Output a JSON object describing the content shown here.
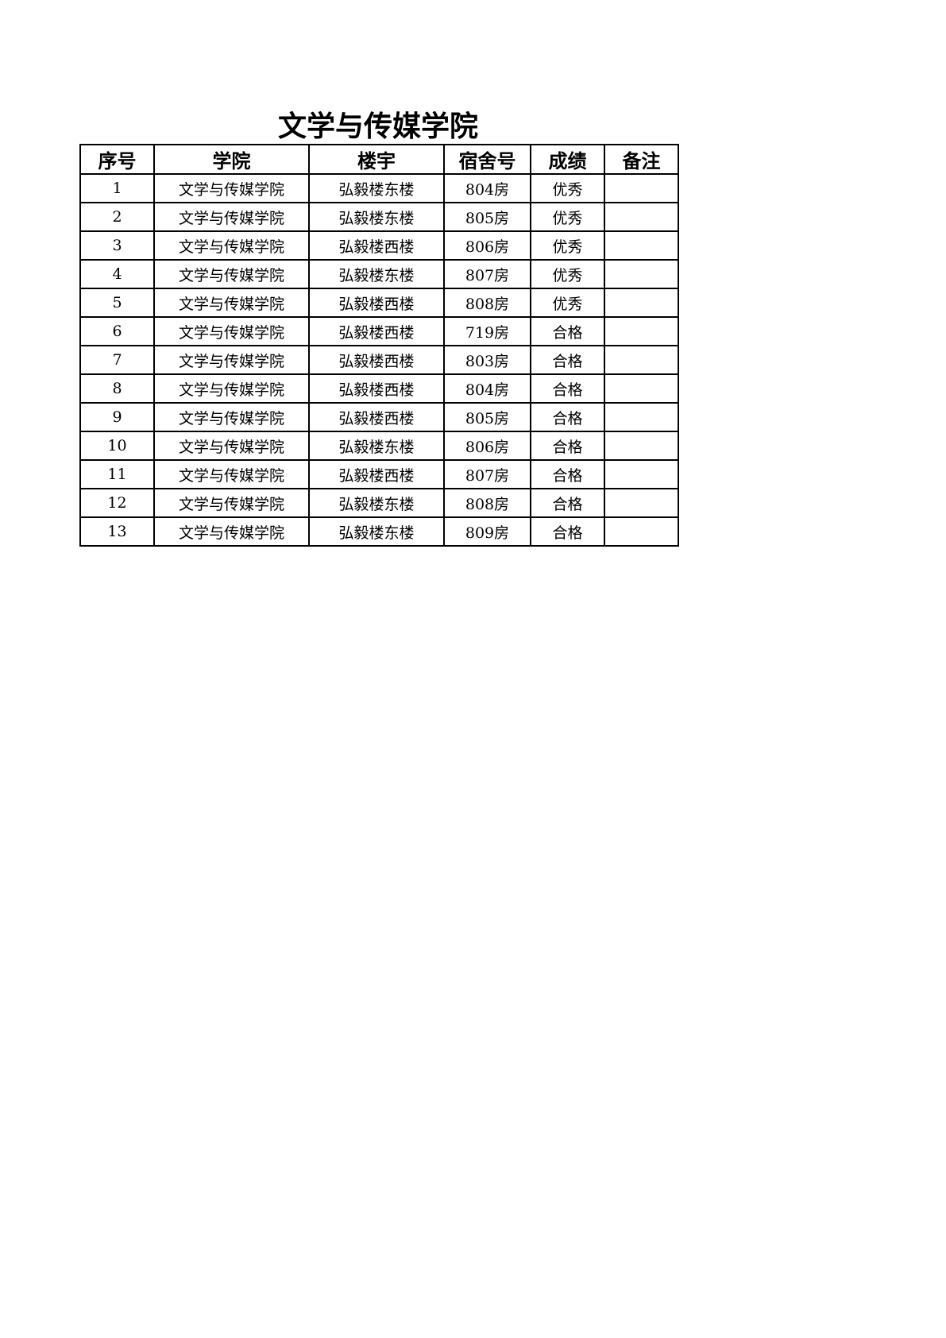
{
  "title": "文学与传媒学院",
  "table": {
    "headers": [
      "序号",
      "学院",
      "楼宇",
      "宿舍号",
      "成绩",
      "备注"
    ],
    "rows": [
      [
        "1",
        "文学与传媒学院",
        "弘毅楼东楼",
        "804房",
        "优秀",
        ""
      ],
      [
        "2",
        "文学与传媒学院",
        "弘毅楼东楼",
        "805房",
        "优秀",
        ""
      ],
      [
        "3",
        "文学与传媒学院",
        "弘毅楼西楼",
        "806房",
        "优秀",
        ""
      ],
      [
        "4",
        "文学与传媒学院",
        "弘毅楼东楼",
        "807房",
        "优秀",
        ""
      ],
      [
        "5",
        "文学与传媒学院",
        "弘毅楼西楼",
        "808房",
        "优秀",
        ""
      ],
      [
        "6",
        "文学与传媒学院",
        "弘毅楼西楼",
        "719房",
        "合格",
        ""
      ],
      [
        "7",
        "文学与传媒学院",
        "弘毅楼西楼",
        "803房",
        "合格",
        ""
      ],
      [
        "8",
        "文学与传媒学院",
        "弘毅楼西楼",
        "804房",
        "合格",
        ""
      ],
      [
        "9",
        "文学与传媒学院",
        "弘毅楼西楼",
        "805房",
        "合格",
        ""
      ],
      [
        "10",
        "文学与传媒学院",
        "弘毅楼东楼",
        "806房",
        "合格",
        ""
      ],
      [
        "11",
        "文学与传媒学院",
        "弘毅楼西楼",
        "807房",
        "合格",
        ""
      ],
      [
        "12",
        "文学与传媒学院",
        "弘毅楼东楼",
        "808房",
        "合格",
        ""
      ],
      [
        "13",
        "文学与传媒学院",
        "弘毅楼东楼",
        "809房",
        "合格",
        ""
      ]
    ]
  }
}
